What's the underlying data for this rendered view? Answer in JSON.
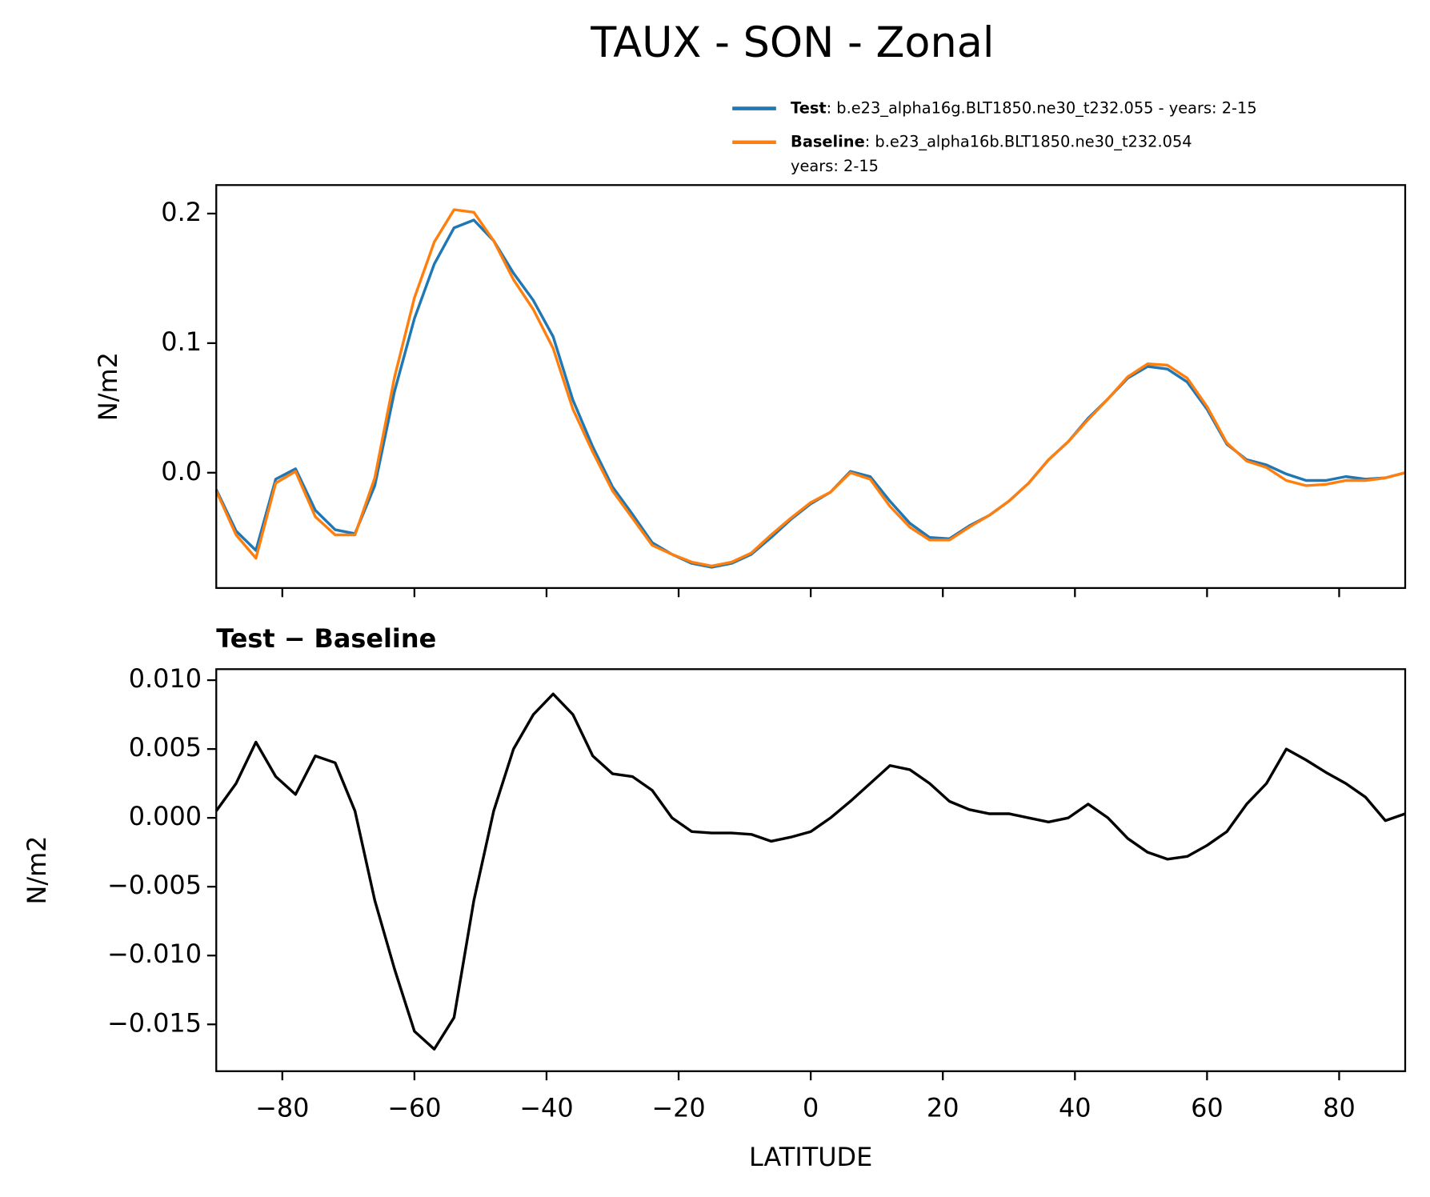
{
  "chart_data": [
    {
      "type": "line",
      "title": "TAUX - SON - Zonal",
      "ylabel": "N/m2",
      "legend": "upper right",
      "x": [
        -90,
        -87,
        -84,
        -81,
        -78,
        -75,
        -72,
        -69,
        -66,
        -63,
        -60,
        -57,
        -54,
        -51,
        -48,
        -45,
        -42,
        -39,
        -36,
        -33,
        -30,
        -27,
        -24,
        -21,
        -18,
        -15,
        -12,
        -9,
        -6,
        -3,
        0,
        3,
        6,
        9,
        12,
        15,
        18,
        21,
        24,
        27,
        30,
        33,
        36,
        39,
        42,
        45,
        48,
        51,
        54,
        57,
        60,
        63,
        66,
        69,
        72,
        75,
        78,
        81,
        84,
        87,
        90
      ],
      "series": [
        {
          "name": "Test",
          "label": ": b.e23_alpha16g.BLT1850.ne30_t232.055 - years: 2-15",
          "color": "#1f77b4",
          "values": [
            -0.013,
            -0.045,
            -0.06,
            -0.005,
            0.003,
            -0.029,
            -0.044,
            -0.047,
            -0.01,
            0.063,
            0.119,
            0.161,
            0.189,
            0.195,
            0.179,
            0.154,
            0.133,
            0.105,
            0.056,
            0.02,
            -0.011,
            -0.032,
            -0.054,
            -0.063,
            -0.07,
            -0.073,
            -0.07,
            -0.063,
            -0.05,
            -0.036,
            -0.024,
            -0.015,
            0.001,
            -0.003,
            -0.022,
            -0.039,
            -0.05,
            -0.051,
            -0.041,
            -0.033,
            -0.022,
            -0.008,
            0.01,
            0.024,
            0.042,
            0.057,
            0.073,
            0.082,
            0.08,
            0.07,
            0.049,
            0.022,
            0.01,
            0.006,
            -0.001,
            -0.006,
            -0.006,
            -0.003,
            -0.005,
            -0.004,
            0.0
          ]
        },
        {
          "name": "Baseline",
          "label": ": b.e23_alpha16b.BLT1850.ne30_t232.054",
          "label2": "years: 2-15",
          "color": "#ff7f0e",
          "values": [
            -0.014,
            -0.048,
            -0.066,
            -0.008,
            0.001,
            -0.034,
            -0.048,
            -0.048,
            -0.004,
            0.074,
            0.135,
            0.178,
            0.203,
            0.201,
            0.179,
            0.149,
            0.126,
            0.096,
            0.049,
            0.016,
            -0.014,
            -0.035,
            -0.056,
            -0.063,
            -0.069,
            -0.072,
            -0.069,
            -0.062,
            -0.048,
            -0.035,
            -0.023,
            -0.015,
            0.0,
            -0.005,
            -0.026,
            -0.042,
            -0.052,
            -0.052,
            -0.042,
            -0.033,
            -0.022,
            -0.008,
            0.01,
            0.024,
            0.041,
            0.057,
            0.074,
            0.084,
            0.083,
            0.073,
            0.051,
            0.023,
            0.009,
            0.004,
            -0.006,
            -0.01,
            -0.009,
            -0.006,
            -0.006,
            -0.004,
            0.0
          ]
        }
      ],
      "xlim": [
        -90,
        90
      ],
      "xticks": [
        -80,
        -60,
        -40,
        -20,
        0,
        20,
        40,
        60,
        80
      ],
      "ylim": [
        -0.089,
        0.222
      ],
      "yticks": [
        {
          "value": 0,
          "label": "0.0"
        },
        0.1,
        0.2
      ]
    },
    {
      "type": "line",
      "title": "Test − Baseline",
      "xlabel": "LATITUDE",
      "ylabel": "N/m2",
      "x": [
        -90,
        -87,
        -84,
        -81,
        -78,
        -75,
        -72,
        -69,
        -66,
        -63,
        -60,
        -57,
        -54,
        -51,
        -48,
        -45,
        -42,
        -39,
        -36,
        -33,
        -30,
        -27,
        -24,
        -21,
        -18,
        -15,
        -12,
        -9,
        -6,
        -3,
        0,
        3,
        6,
        9,
        12,
        15,
        18,
        21,
        24,
        27,
        30,
        33,
        36,
        39,
        42,
        45,
        48,
        51,
        54,
        57,
        60,
        63,
        66,
        69,
        72,
        75,
        78,
        81,
        84,
        87,
        90
      ],
      "series": [
        {
          "color": "#000000",
          "values": [
            0.0005,
            0.0025,
            0.0055,
            0.003,
            0.0017,
            0.0045,
            0.004,
            0.0005,
            -0.006,
            -0.011,
            -0.0155,
            -0.0168,
            -0.0145,
            -0.006,
            0.0005,
            0.005,
            0.0075,
            0.009,
            0.0075,
            0.0045,
            0.0032,
            0.003,
            0.002,
            0.0,
            -0.001,
            -0.0011,
            -0.0011,
            -0.0012,
            -0.0017,
            -0.0014,
            -0.001,
            0.0,
            0.0012,
            0.0025,
            0.0038,
            0.0035,
            0.0025,
            0.0012,
            0.0006,
            0.0003,
            0.0003,
            0.0,
            -0.0003,
            0.0,
            0.001,
            0.0,
            -0.0015,
            -0.0025,
            -0.003,
            -0.0028,
            -0.002,
            -0.001,
            0.001,
            0.0025,
            0.005,
            0.0042,
            0.0033,
            0.0025,
            0.0015,
            -0.0002,
            0.0003
          ]
        }
      ],
      "xlim": [
        -90,
        90
      ],
      "xticks": [
        {
          "value": -80,
          "label": "−80"
        },
        {
          "value": -60,
          "label": "−60"
        },
        {
          "value": -40,
          "label": "−40"
        },
        {
          "value": -20,
          "label": "−20"
        },
        0,
        20,
        40,
        60,
        80
      ],
      "ylim": [
        -0.0184,
        0.0108
      ],
      "yticks": [
        {
          "value": -0.015,
          "label": "−0.015"
        },
        {
          "value": -0.01,
          "label": "−0.010"
        },
        {
          "value": -0.005,
          "label": "−0.005"
        },
        {
          "value": 0,
          "label": "0.000"
        },
        {
          "value": 0.005,
          "label": "0.005"
        },
        {
          "value": 0.01,
          "label": "0.010"
        }
      ]
    }
  ]
}
